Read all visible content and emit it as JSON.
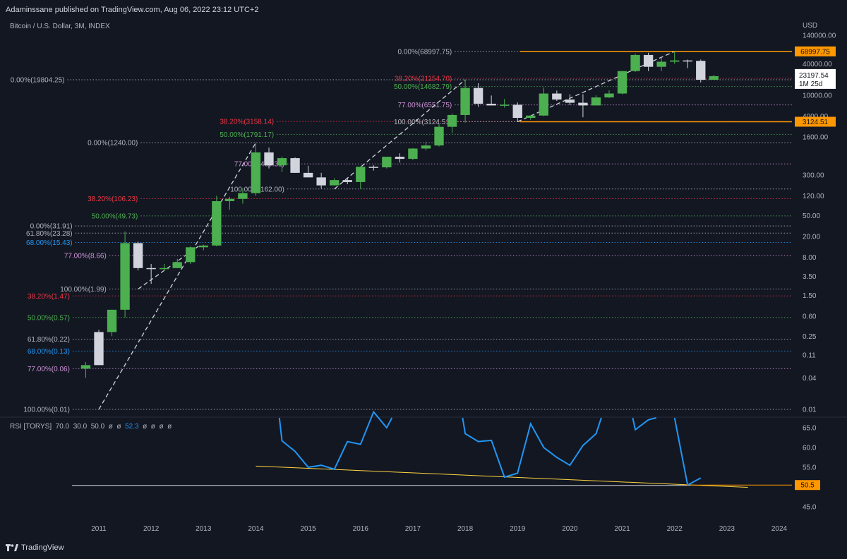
{
  "header": {
    "published": "Adaminssane published on TradingView.com, Aug 06, 2022 23:12 UTC+2",
    "symbol": "Bitcoin / U.S. Dollar, 3M, INDEX",
    "currency": "USD",
    "footer_brand": "TradingView"
  },
  "colors": {
    "bg": "#131722",
    "up": "#4caf50",
    "down": "#d1d4dc",
    "orange": "#ff9800",
    "rsi": "#2196f3",
    "trend": "#ffd740"
  },
  "chart_data": {
    "type": "candlestick",
    "scale": "log",
    "x_ticks": [
      "2011",
      "2012",
      "2013",
      "2014",
      "2015",
      "2016",
      "2017",
      "2018",
      "2019",
      "2020",
      "2021",
      "2022",
      "2023",
      "2024"
    ],
    "y_ticks": [
      "140000.00",
      "40000.00",
      "10000.00",
      "4000.00",
      "1600.00",
      "300.00",
      "120.00",
      "50.00",
      "20.00",
      "8.00",
      "3.50",
      "1.50",
      "0.60",
      "0.25",
      "0.11",
      "0.04",
      "0.01"
    ],
    "price_badges": [
      {
        "label": "68997.75",
        "value": 68997.75
      },
      {
        "label": "3124.51",
        "value": 3124.51
      }
    ],
    "last_price": {
      "label": "23197.54",
      "countdown": "1M 25d",
      "value": 23197.54
    },
    "candles": [
      {
        "t": 2010.75,
        "o": 0.06,
        "h": 0.08,
        "l": 0.04,
        "c": 0.07
      },
      {
        "t": 2011.0,
        "o": 0.3,
        "h": 0.33,
        "l": 0.2,
        "c": 0.07
      },
      {
        "t": 2011.25,
        "o": 0.3,
        "h": 0.8,
        "l": 0.25,
        "c": 0.8
      },
      {
        "t": 2011.5,
        "o": 0.8,
        "h": 25,
        "l": 0.57,
        "c": 15
      },
      {
        "t": 2011.75,
        "o": 15,
        "h": 16,
        "l": 4.5,
        "c": 5.0
      },
      {
        "t": 2012.0,
        "o": 5.0,
        "h": 6.0,
        "l": 2.5,
        "c": 4.8
      },
      {
        "t": 2012.25,
        "o": 4.8,
        "h": 6.0,
        "l": 4.5,
        "c": 5.0
      },
      {
        "t": 2012.5,
        "o": 5.0,
        "h": 7.5,
        "l": 5.0,
        "c": 6.5
      },
      {
        "t": 2012.75,
        "o": 6.5,
        "h": 13,
        "l": 6.0,
        "c": 12.5
      },
      {
        "t": 2013.0,
        "o": 12.5,
        "h": 14,
        "l": 11,
        "c": 13.5
      },
      {
        "t": 2013.25,
        "o": 13.5,
        "h": 120,
        "l": 13,
        "c": 95
      },
      {
        "t": 2013.5,
        "o": 95,
        "h": 115,
        "l": 65,
        "c": 105
      },
      {
        "t": 2013.75,
        "o": 105,
        "h": 170,
        "l": 85,
        "c": 135
      },
      {
        "t": 2014.0,
        "o": 135,
        "h": 1240,
        "l": 120,
        "c": 810
      },
      {
        "t": 2014.25,
        "o": 810,
        "h": 1000,
        "l": 400,
        "c": 460
      },
      {
        "t": 2014.5,
        "o": 460,
        "h": 680,
        "l": 340,
        "c": 630
      },
      {
        "t": 2014.75,
        "o": 630,
        "h": 650,
        "l": 330,
        "c": 330
      },
      {
        "t": 2015.0,
        "o": 330,
        "h": 450,
        "l": 280,
        "c": 270
      },
      {
        "t": 2015.25,
        "o": 270,
        "h": 330,
        "l": 165,
        "c": 190
      },
      {
        "t": 2015.5,
        "o": 190,
        "h": 260,
        "l": 190,
        "c": 240
      },
      {
        "t": 2015.75,
        "o": 240,
        "h": 260,
        "l": 200,
        "c": 220
      },
      {
        "t": 2016.0,
        "o": 220,
        "h": 440,
        "l": 162,
        "c": 430
      },
      {
        "t": 2016.25,
        "o": 430,
        "h": 460,
        "l": 365,
        "c": 420
      },
      {
        "t": 2016.5,
        "o": 420,
        "h": 640,
        "l": 400,
        "c": 670
      },
      {
        "t": 2016.75,
        "o": 670,
        "h": 780,
        "l": 520,
        "c": 610
      },
      {
        "t": 2017.0,
        "o": 610,
        "h": 980,
        "l": 580,
        "c": 960
      },
      {
        "t": 2017.25,
        "o": 960,
        "h": 1290,
        "l": 880,
        "c": 1100
      },
      {
        "t": 2017.5,
        "o": 1100,
        "h": 2800,
        "l": 1050,
        "c": 2500
      },
      {
        "t": 2017.75,
        "o": 2500,
        "h": 4500,
        "l": 1900,
        "c": 4200
      },
      {
        "t": 2018.0,
        "o": 4200,
        "h": 19804,
        "l": 3000,
        "c": 13800
      },
      {
        "t": 2018.25,
        "o": 13800,
        "h": 17000,
        "l": 6000,
        "c": 6900
      },
      {
        "t": 2018.5,
        "o": 6900,
        "h": 9900,
        "l": 6400,
        "c": 6400
      },
      {
        "t": 2018.75,
        "o": 6400,
        "h": 8500,
        "l": 5800,
        "c": 6600
      },
      {
        "t": 2019.0,
        "o": 6600,
        "h": 7300,
        "l": 3124,
        "c": 3700
      },
      {
        "t": 2019.25,
        "o": 3700,
        "h": 4100,
        "l": 3400,
        "c": 4100
      },
      {
        "t": 2019.5,
        "o": 4100,
        "h": 14000,
        "l": 4000,
        "c": 10800
      },
      {
        "t": 2019.75,
        "o": 10800,
        "h": 12300,
        "l": 7800,
        "c": 8300
      },
      {
        "t": 2020.0,
        "o": 8300,
        "h": 10500,
        "l": 6500,
        "c": 7200
      },
      {
        "t": 2020.25,
        "o": 7200,
        "h": 10500,
        "l": 3800,
        "c": 6400
      },
      {
        "t": 2020.5,
        "o": 6400,
        "h": 10000,
        "l": 6400,
        "c": 9100
      },
      {
        "t": 2020.75,
        "o": 9100,
        "h": 12500,
        "l": 8900,
        "c": 10800
      },
      {
        "t": 2021.0,
        "o": 10800,
        "h": 29300,
        "l": 10400,
        "c": 29000
      },
      {
        "t": 2021.25,
        "o": 29000,
        "h": 62000,
        "l": 28000,
        "c": 58800
      },
      {
        "t": 2021.5,
        "o": 58800,
        "h": 65000,
        "l": 29000,
        "c": 35000
      },
      {
        "t": 2021.75,
        "o": 35000,
        "h": 52000,
        "l": 29000,
        "c": 43800
      },
      {
        "t": 2022.0,
        "o": 43800,
        "h": 68997,
        "l": 40000,
        "c": 46300
      },
      {
        "t": 2022.25,
        "o": 46300,
        "h": 48000,
        "l": 33000,
        "c": 45500
      },
      {
        "t": 2022.5,
        "o": 45500,
        "h": 48200,
        "l": 17600,
        "c": 19800
      },
      {
        "t": 2022.75,
        "o": 19800,
        "h": 24500,
        "l": 19800,
        "c": 23197
      }
    ],
    "fib_sets": [
      {
        "levels": [
          {
            "label": "0.00%(31.91)",
            "value": 31.91,
            "color": "#b2b5be",
            "from": 2010.55
          },
          {
            "label": "61.80%(23.28)",
            "value": 23.28,
            "color": "#b2b5be",
            "from": 2010.55
          },
          {
            "label": "68.00%(15.43)",
            "value": 15.43,
            "color": "#2196f3",
            "from": 2010.55
          },
          {
            "label": "77.00%(8.66)",
            "value": 8.66,
            "color": "#ce93d8",
            "from": 2011.2
          },
          {
            "label": "100.00%(1.99)",
            "value": 1.99,
            "color": "#b2b5be",
            "from": 2011.2
          }
        ]
      },
      {
        "levels": [
          {
            "label": "38.20%(1.47)",
            "value": 1.47,
            "color": "#f23645",
            "from": 2010.5
          },
          {
            "label": "50.00%(0.57)",
            "value": 0.57,
            "color": "#4caf50",
            "from": 2010.5
          },
          {
            "label": "61.80%(0.22)",
            "value": 0.22,
            "color": "#b2b5be",
            "from": 2010.5
          },
          {
            "label": "68.00%(0.13)",
            "value": 0.13,
            "color": "#2196f3",
            "from": 2010.5
          },
          {
            "label": "77.00%(0.06)",
            "value": 0.06,
            "color": "#ce93d8",
            "from": 2010.5
          },
          {
            "label": "100.00%(0.01)",
            "value": 0.01,
            "color": "#b2b5be",
            "from": 2010.5
          }
        ]
      },
      {
        "levels": [
          {
            "label": "0.00%(1240.00)",
            "value": 1240,
            "color": "#b2b5be",
            "from": 2011.8
          },
          {
            "label": "38.20%(106.23)",
            "value": 106.23,
            "color": "#f23645",
            "from": 2011.8
          },
          {
            "label": "50.00%(49.73)",
            "value": 49.73,
            "color": "#4caf50",
            "from": 2011.8
          },
          {
            "label": "77.00%(489.31)",
            "value": 489.31,
            "color": "#ce93d8",
            "from": 2014.6
          },
          {
            "label": "100.00%(162.00)",
            "value": 162,
            "color": "#b2b5be",
            "from": 2014.6
          }
        ]
      },
      {
        "levels": [
          {
            "label": "0.00%(19804.25)",
            "value": 19804.25,
            "color": "#b2b5be",
            "from": 2010.4
          },
          {
            "label": "38.20%(3158.14)",
            "value": 3158.14,
            "color": "#f23645",
            "from": 2014.4
          },
          {
            "label": "50.00%(1791.17)",
            "value": 1791.17,
            "color": "#4caf50",
            "from": 2014.4
          },
          {
            "label": "38.20%(21154.70)",
            "value": 21154.7,
            "color": "#f23645",
            "from": 2017.8
          },
          {
            "label": "50.00%(14682.79)",
            "value": 14682.79,
            "color": "#4caf50",
            "from": 2017.8
          },
          {
            "label": "77.00%(6551.75)",
            "value": 6551.75,
            "color": "#ce93d8",
            "from": 2017.8
          },
          {
            "label": "100.00%(3124.51)",
            "value": 3124.51,
            "color": "#b2b5be",
            "from": 2017.8
          },
          {
            "label": "0.00%(68997.75)",
            "value": 68997.75,
            "color": "#b2b5be",
            "from": 2017.8
          }
        ]
      }
    ],
    "rsi": {
      "label": "RSI [TORYS]",
      "params": [
        "70.0",
        "30.0",
        "50.0",
        "ø",
        "ø"
      ],
      "value": "52.3",
      "extra": [
        "ø",
        "ø",
        "ø",
        "ø"
      ],
      "y_ticks": [
        "65.0",
        "60.0",
        "55.0",
        "50.0",
        "45.0"
      ],
      "badge": {
        "label": "50.5",
        "value": 50.5
      },
      "series": [
        {
          "t": 2014.45,
          "v": 67.5
        },
        {
          "t": 2014.5,
          "v": 61.7
        },
        {
          "t": 2014.75,
          "v": 59.0
        },
        {
          "t": 2015.0,
          "v": 55.0
        },
        {
          "t": 2015.25,
          "v": 55.5
        },
        {
          "t": 2015.5,
          "v": 54.5
        },
        {
          "t": 2015.75,
          "v": 61.5
        },
        {
          "t": 2016.0,
          "v": 60.8
        },
        {
          "t": 2016.25,
          "v": 69.0
        },
        {
          "t": 2016.5,
          "v": 65.0
        },
        {
          "t": 2016.6,
          "v": 67.5
        },
        {
          "t": 2017.95,
          "v": 67.5
        },
        {
          "t": 2018.0,
          "v": 63.5
        },
        {
          "t": 2018.25,
          "v": 61.5
        },
        {
          "t": 2018.5,
          "v": 61.8
        },
        {
          "t": 2018.75,
          "v": 52.5
        },
        {
          "t": 2019.0,
          "v": 53.5
        },
        {
          "t": 2019.25,
          "v": 66.0
        },
        {
          "t": 2019.5,
          "v": 60.0
        },
        {
          "t": 2019.75,
          "v": 57.5
        },
        {
          "t": 2020.0,
          "v": 55.5
        },
        {
          "t": 2020.25,
          "v": 60.5
        },
        {
          "t": 2020.5,
          "v": 63.5
        },
        {
          "t": 2020.6,
          "v": 67.5
        },
        {
          "t": 2021.2,
          "v": 67.5
        },
        {
          "t": 2021.25,
          "v": 64.5
        },
        {
          "t": 2021.5,
          "v": 67.0
        },
        {
          "t": 2021.65,
          "v": 67.5
        },
        {
          "t": 2022.0,
          "v": 67.5
        },
        {
          "t": 2022.25,
          "v": 50.5
        },
        {
          "t": 2022.5,
          "v": 52.3
        }
      ]
    }
  }
}
